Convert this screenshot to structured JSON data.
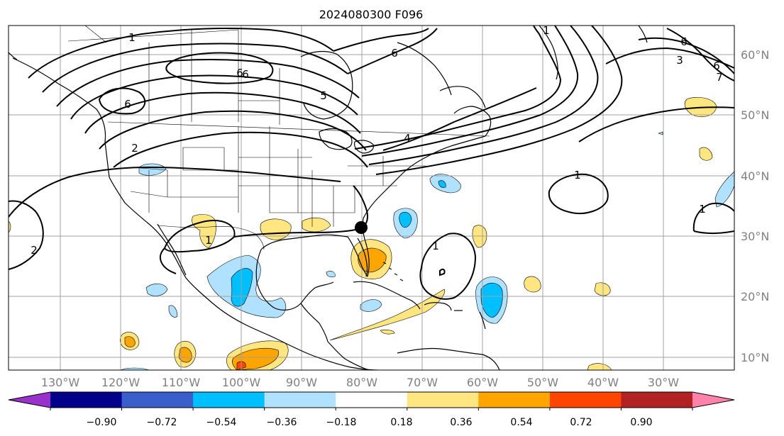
{
  "title": "2024080300 F096",
  "map": {
    "longitude_labels": [
      "130°W",
      "120°W",
      "110°W",
      "100°W",
      "90°W",
      "80°W",
      "70°W",
      "60°W",
      "50°W",
      "40°W",
      "30°W"
    ],
    "latitude_labels": [
      "60°N",
      "50°N",
      "40°N",
      "30°N",
      "20°N",
      "10°N"
    ],
    "contour_labels": [
      "1",
      "6",
      "6",
      "5",
      "6",
      "6",
      "1",
      "2",
      "2",
      "4",
      "6",
      "3",
      "6",
      "7",
      "1",
      "1",
      "1",
      "1"
    ],
    "marker": "location-dot",
    "colors": {
      "contour_line": "#000000",
      "grid": "#a0a0a0",
      "coast": "#000000"
    }
  },
  "colorbar": {
    "tick_labels": [
      "−0.90",
      "−0.72",
      "−0.54",
      "−0.36",
      "−0.18",
      "0.18",
      "0.36",
      "0.54",
      "0.72",
      "0.90"
    ],
    "colors": [
      "#9932cc",
      "#00008b",
      "#3a5fcd",
      "#00bfff",
      "#b0e2ff",
      "#ffffff",
      "#ffe680",
      "#ffa500",
      "#ff4500",
      "#b22222",
      "#ff82ab"
    ]
  }
}
